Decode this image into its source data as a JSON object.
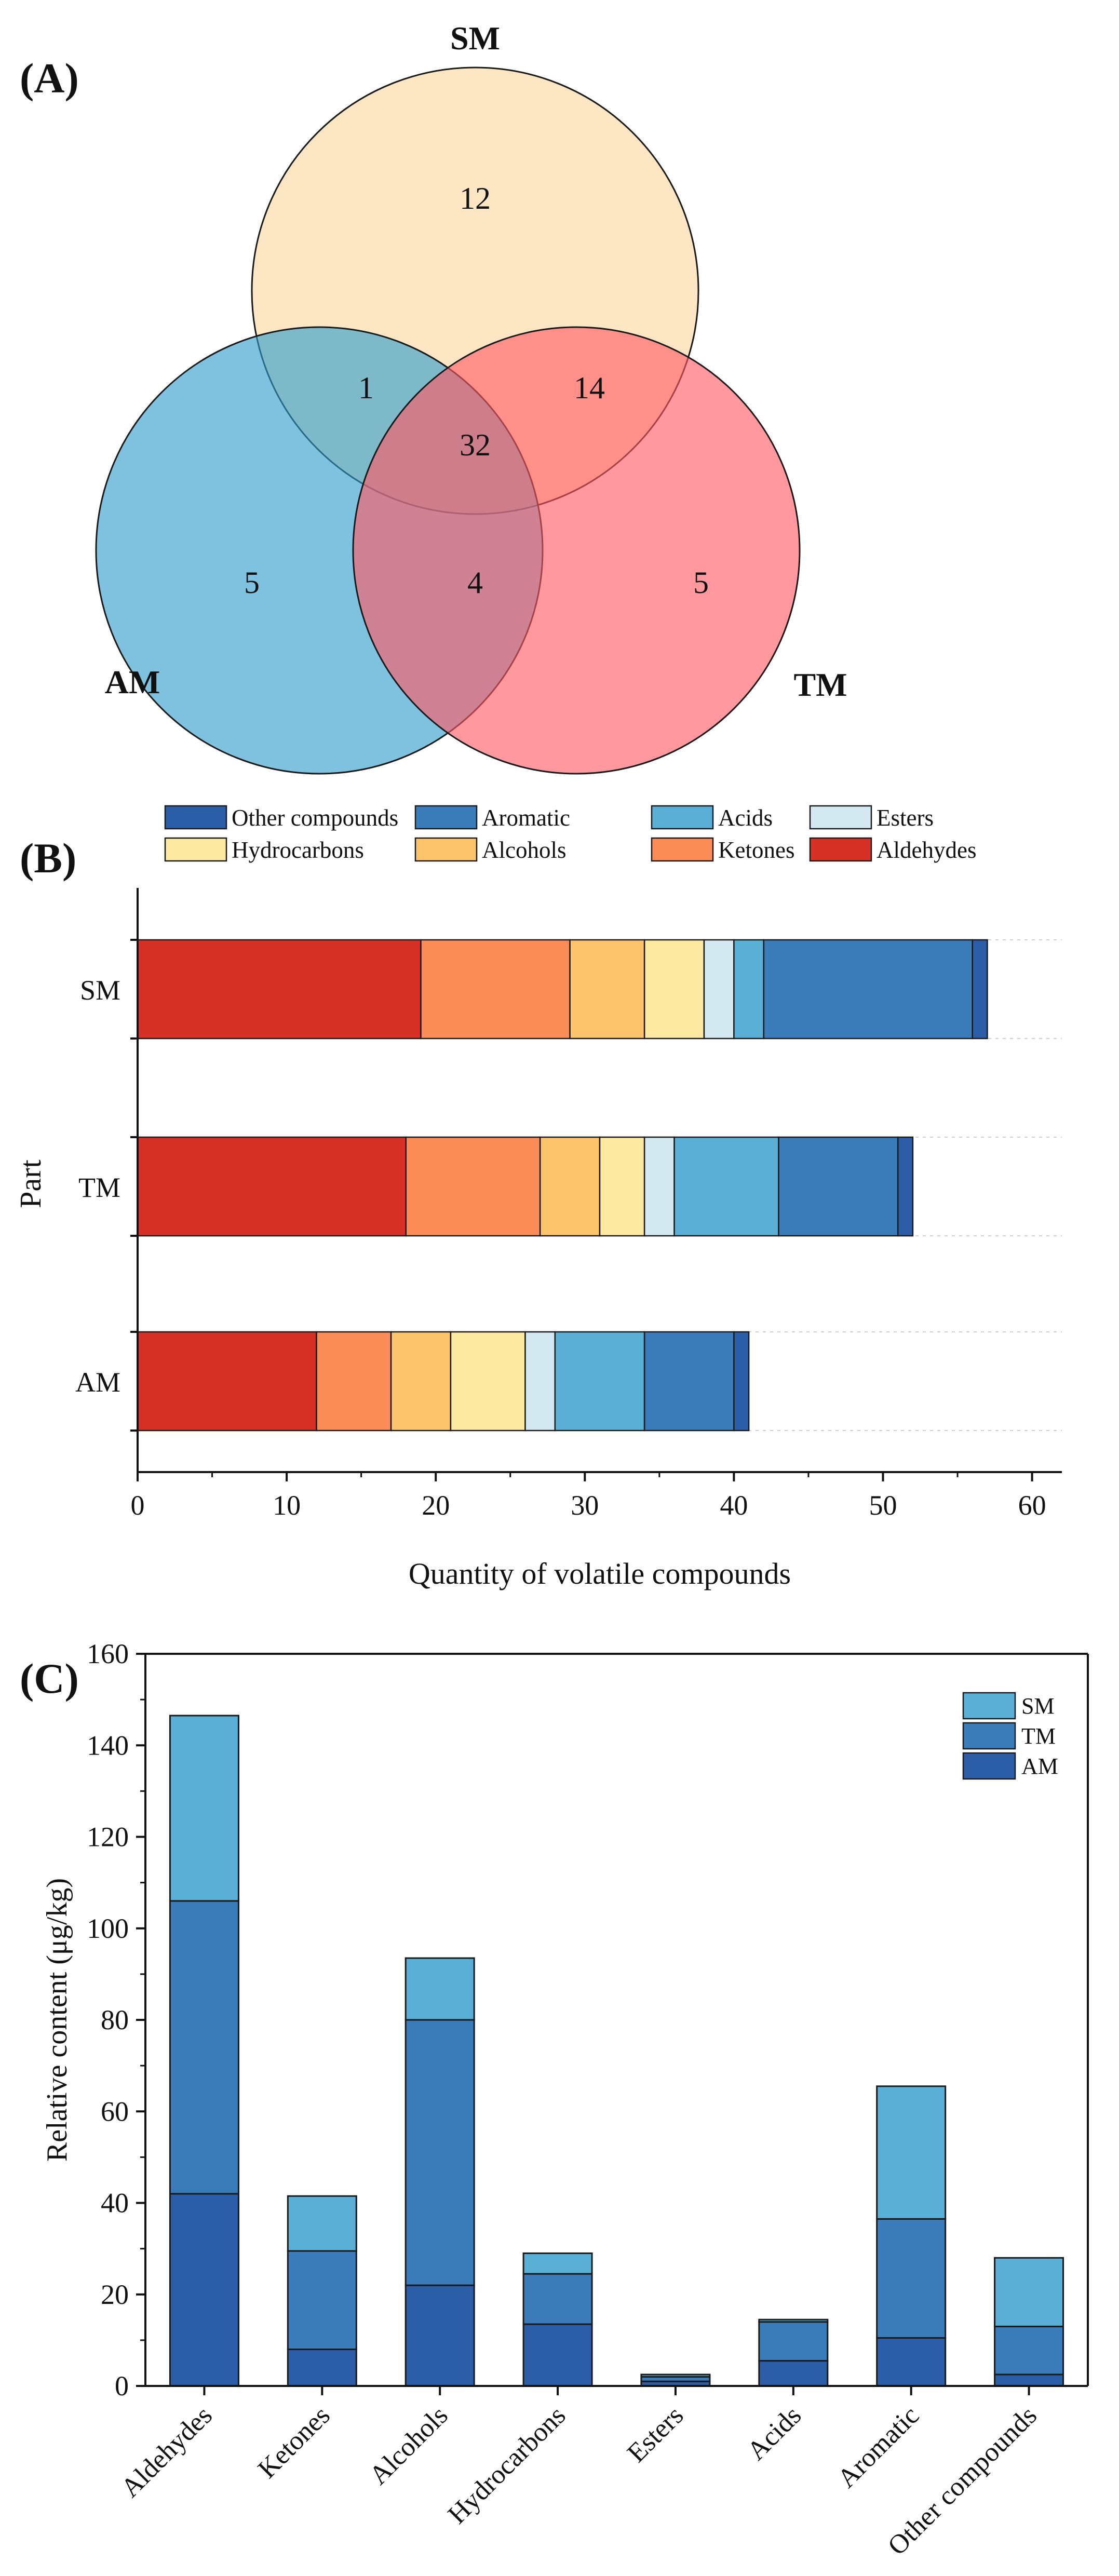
{
  "panels": {
    "a": {
      "label": "(A)"
    },
    "b": {
      "label": "(B)"
    },
    "c": {
      "label": "(C)"
    }
  },
  "chart_data": [
    {
      "type": "venn",
      "sets": [
        {
          "name": "SM",
          "color": "#fcd79f"
        },
        {
          "name": "AM",
          "color": "#2e9ccc"
        },
        {
          "name": "TM",
          "color": "#ff5a64"
        }
      ],
      "regions": [
        {
          "sets": [
            "SM"
          ],
          "value": 12
        },
        {
          "sets": [
            "AM"
          ],
          "value": 5
        },
        {
          "sets": [
            "TM"
          ],
          "value": 5
        },
        {
          "sets": [
            "SM",
            "AM"
          ],
          "value": 1
        },
        {
          "sets": [
            "SM",
            "TM"
          ],
          "value": 14
        },
        {
          "sets": [
            "AM",
            "TM"
          ],
          "value": 4
        },
        {
          "sets": [
            "SM",
            "AM",
            "TM"
          ],
          "value": 32
        }
      ]
    },
    {
      "type": "bar",
      "orientation": "horizontal",
      "stacked": true,
      "categories": [
        "SM",
        "TM",
        "AM"
      ],
      "series": [
        {
          "name": "Aldehydes",
          "color": "#d73027",
          "values": [
            19,
            18,
            12
          ]
        },
        {
          "name": "Ketones",
          "color": "#fc8d59",
          "values": [
            10,
            9,
            5
          ]
        },
        {
          "name": "Alcohols",
          "color": "#fec46c",
          "values": [
            5,
            4,
            4
          ]
        },
        {
          "name": "Hydrocarbons",
          "color": "#fee9a3",
          "values": [
            4,
            3,
            5
          ]
        },
        {
          "name": "Esters",
          "color": "#d3e8f0",
          "values": [
            2,
            2,
            2
          ]
        },
        {
          "name": "Acids",
          "color": "#5aafd6",
          "values": [
            2,
            7,
            6
          ]
        },
        {
          "name": "Aromatic",
          "color": "#3a7cba",
          "values": [
            14,
            8,
            6
          ]
        },
        {
          "name": "Other compounds",
          "color": "#2c5ea8",
          "values": [
            1,
            1,
            1
          ]
        }
      ],
      "legend": [
        {
          "name": "Other compounds",
          "color": "#2c5ea8"
        },
        {
          "name": "Aromatic",
          "color": "#3a7cba"
        },
        {
          "name": "Acids",
          "color": "#5aafd6"
        },
        {
          "name": "Esters",
          "color": "#d3e8f0"
        },
        {
          "name": "Hydrocarbons",
          "color": "#fee9a3"
        },
        {
          "name": "Alcohols",
          "color": "#fec46c"
        },
        {
          "name": "Ketones",
          "color": "#fc8d59"
        },
        {
          "name": "Aldehydes",
          "color": "#d73027"
        }
      ],
      "xlabel": "Quantity of volatile compounds",
      "ylabel": "Part",
      "xlim": [
        0,
        62
      ],
      "xticks": [
        0,
        10,
        20,
        30,
        40,
        50,
        60
      ],
      "legend_position": "top"
    },
    {
      "type": "bar",
      "stacked": true,
      "categories": [
        "Aldehydes",
        "Ketones",
        "Alcohols",
        "Hydrocarbons",
        "Esters",
        "Acids",
        "Aromatic",
        "Other compounds"
      ],
      "series": [
        {
          "name": "AM",
          "color": "#2c5ea8",
          "values": [
            42,
            8,
            22,
            13.5,
            1,
            5.5,
            10.5,
            2.5
          ]
        },
        {
          "name": "TM",
          "color": "#3a7cba",
          "values": [
            64,
            21.5,
            58,
            11,
            1,
            8.5,
            26,
            10.5
          ]
        },
        {
          "name": "SM",
          "color": "#5aafd6",
          "values": [
            40.5,
            12,
            13.5,
            4.5,
            0.5,
            0.5,
            29,
            15
          ]
        }
      ],
      "legend_order": [
        "SM",
        "TM",
        "AM"
      ],
      "ylabel": "Relative content (μg/kg)",
      "ylim": [
        0,
        160
      ],
      "yticks": [
        0,
        20,
        40,
        60,
        80,
        100,
        120,
        140,
        160
      ],
      "legend_position": "top-right"
    }
  ]
}
